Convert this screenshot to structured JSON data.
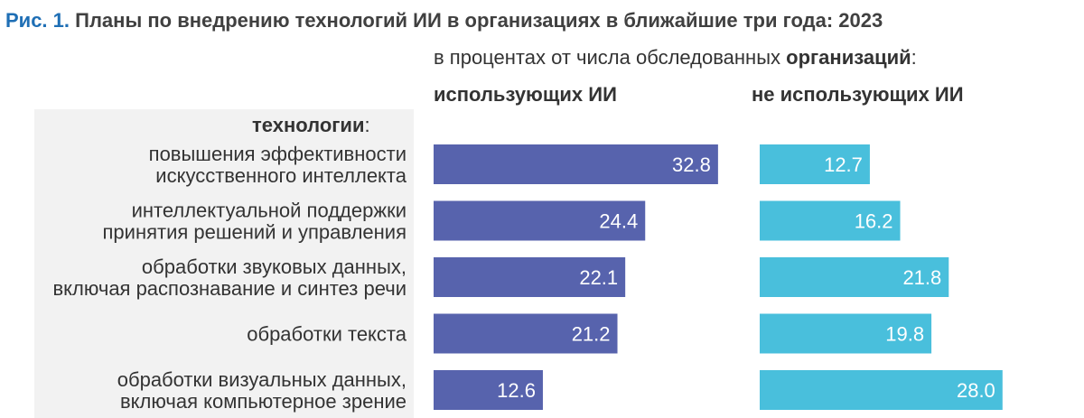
{
  "figure": {
    "number": "Рис. 1.",
    "title": "Планы по внедрению технологий ИИ в организациях в ближайшие три года: 2023",
    "subtitle_prefix": "в процентах от числа обследованных ",
    "subtitle_bold": "организаций",
    "subtitle_suffix": ":",
    "row_header_bold": "технологии",
    "row_header_suffix": ":"
  },
  "colors": {
    "series_1": "#5763ad",
    "series_2": "#49bfdc",
    "panel": "#f2f2f2"
  },
  "chart_data": {
    "type": "bar",
    "orientation": "horizontal",
    "categories": [
      [
        "повышения эффективности",
        "искусственного интеллекта"
      ],
      [
        "интеллектуальной поддержки",
        "принятия решений и управления"
      ],
      [
        "обработки звуковых данных,",
        "включая распознавание и синтез речи"
      ],
      [
        "обработки текста"
      ],
      [
        "обработки визуальных данных,",
        "включая компьютерное зрение"
      ]
    ],
    "series": [
      {
        "name": "использующих ИИ",
        "values": [
          32.8,
          24.4,
          22.1,
          21.2,
          12.6
        ],
        "labels": [
          "32.8",
          "24.4",
          "22.1",
          "21.2",
          "12.6"
        ]
      },
      {
        "name": "не использующих ИИ",
        "values": [
          12.7,
          16.2,
          21.8,
          19.8,
          28.0
        ],
        "labels": [
          "12.7",
          "16.2",
          "21.8",
          "19.8",
          "28.0"
        ]
      }
    ],
    "grid": false,
    "legend": "column headers above bars"
  }
}
